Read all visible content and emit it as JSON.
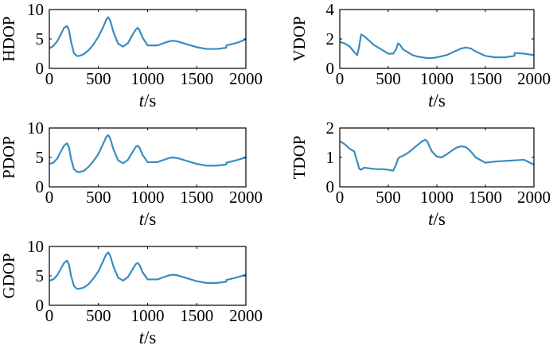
{
  "chart_data": [
    {
      "type": "line",
      "ylabel": "HDOP",
      "xlabel_var": "t",
      "xlabel_unit": "/s",
      "xlim": [
        0,
        2000
      ],
      "ylim": [
        0,
        10
      ],
      "xticks": [
        0,
        500,
        1000,
        1500,
        2000
      ],
      "yticks": [
        0,
        5,
        10
      ],
      "color": "#3a8cc0",
      "x": [
        0,
        40,
        80,
        120,
        150,
        180,
        200,
        220,
        250,
        280,
        300,
        350,
        400,
        450,
        500,
        550,
        580,
        600,
        620,
        650,
        700,
        750,
        800,
        850,
        880,
        900,
        920,
        950,
        1000,
        1100,
        1200,
        1250,
        1300,
        1400,
        1500,
        1600,
        1700,
        1800,
        1801,
        1900,
        2000
      ],
      "y": [
        3.4,
        3.8,
        4.6,
        5.9,
        6.9,
        7.2,
        6.5,
        4.6,
        2.6,
        2.1,
        2.1,
        2.4,
        3.1,
        4.1,
        5.4,
        7.1,
        8.3,
        8.7,
        8.1,
        6.3,
        4.2,
        3.7,
        4.3,
        5.8,
        6.6,
        6.9,
        6.4,
        5.2,
        3.9,
        3.9,
        4.5,
        4.7,
        4.6,
        4.1,
        3.6,
        3.3,
        3.3,
        3.5,
        3.9,
        4.3,
        4.9
      ]
    },
    {
      "type": "line",
      "ylabel": "VDOP",
      "xlabel_var": "t",
      "xlabel_unit": "/s",
      "xlim": [
        0,
        2000
      ],
      "ylim": [
        0,
        4
      ],
      "xticks": [
        0,
        500,
        1000,
        1500,
        2000
      ],
      "yticks": [
        0,
        2,
        4
      ],
      "color": "#3a8cc0",
      "x": [
        0,
        50,
        100,
        150,
        180,
        200,
        220,
        250,
        300,
        350,
        400,
        450,
        500,
        550,
        580,
        600,
        620,
        650,
        700,
        750,
        800,
        850,
        900,
        950,
        1000,
        1100,
        1200,
        1250,
        1300,
        1350,
        1400,
        1500,
        1600,
        1700,
        1800,
        1801,
        1900,
        2000
      ],
      "y": [
        1.8,
        1.7,
        1.5,
        1.1,
        0.9,
        1.5,
        2.3,
        2.2,
        1.9,
        1.6,
        1.4,
        1.2,
        1.0,
        1.0,
        1.3,
        1.7,
        1.6,
        1.3,
        1.1,
        0.9,
        0.8,
        0.75,
        0.7,
        0.7,
        0.75,
        0.9,
        1.2,
        1.35,
        1.42,
        1.35,
        1.15,
        0.85,
        0.75,
        0.75,
        0.85,
        1.05,
        1.0,
        0.9
      ]
    },
    {
      "type": "line",
      "ylabel": "PDOP",
      "xlabel_var": "t",
      "xlabel_unit": "/s",
      "xlim": [
        0,
        2000
      ],
      "ylim": [
        0,
        10
      ],
      "xticks": [
        0,
        500,
        1000,
        1500,
        2000
      ],
      "yticks": [
        0,
        5,
        10
      ],
      "color": "#3a8cc0",
      "x": [
        0,
        40,
        80,
        120,
        150,
        180,
        200,
        220,
        250,
        280,
        300,
        350,
        400,
        450,
        500,
        550,
        580,
        600,
        620,
        650,
        700,
        750,
        800,
        850,
        880,
        900,
        920,
        950,
        1000,
        1100,
        1200,
        1250,
        1300,
        1400,
        1500,
        1600,
        1700,
        1800,
        1801,
        1900,
        2000
      ],
      "y": [
        3.9,
        4.1,
        4.8,
        6.1,
        7.0,
        7.4,
        6.7,
        4.9,
        3.0,
        2.6,
        2.5,
        2.7,
        3.4,
        4.4,
        5.6,
        7.4,
        8.5,
        8.8,
        8.2,
        6.5,
        4.5,
        4.0,
        4.6,
        6.0,
        6.8,
        7.0,
        6.6,
        5.4,
        4.2,
        4.2,
        4.8,
        5.0,
        4.9,
        4.4,
        3.9,
        3.6,
        3.6,
        3.8,
        4.1,
        4.5,
        5.0
      ]
    },
    {
      "type": "line",
      "ylabel": "TDOP",
      "xlabel_var": "t",
      "xlabel_unit": "/s",
      "xlim": [
        0,
        2000
      ],
      "ylim": [
        0,
        2
      ],
      "xticks": [
        0,
        500,
        1000,
        1500,
        2000
      ],
      "yticks": [
        0,
        1,
        2
      ],
      "color": "#3a8cc0",
      "x": [
        0,
        50,
        100,
        150,
        200,
        220,
        250,
        300,
        350,
        400,
        450,
        500,
        550,
        580,
        600,
        620,
        650,
        700,
        750,
        800,
        850,
        880,
        900,
        920,
        950,
        1000,
        1050,
        1100,
        1150,
        1200,
        1250,
        1300,
        1350,
        1400,
        1500,
        1600,
        1700,
        1800,
        1900,
        2000
      ],
      "y": [
        1.55,
        1.45,
        1.3,
        1.2,
        0.62,
        0.58,
        0.65,
        0.63,
        0.61,
        0.6,
        0.6,
        0.58,
        0.55,
        0.75,
        0.95,
        1.02,
        1.05,
        1.15,
        1.28,
        1.42,
        1.55,
        1.6,
        1.55,
        1.4,
        1.2,
        1.03,
        1.0,
        1.1,
        1.22,
        1.33,
        1.38,
        1.35,
        1.2,
        1.0,
        0.82,
        0.86,
        0.88,
        0.9,
        0.92,
        0.75
      ]
    },
    {
      "type": "line",
      "ylabel": "GDOP",
      "xlabel_var": "t",
      "xlabel_unit": "/s",
      "xlim": [
        0,
        2000
      ],
      "ylim": [
        0,
        10
      ],
      "xticks": [
        0,
        500,
        1000,
        1500,
        2000
      ],
      "yticks": [
        0,
        5,
        10
      ],
      "color": "#3a8cc0",
      "x": [
        0,
        40,
        80,
        120,
        150,
        180,
        200,
        220,
        250,
        280,
        300,
        350,
        400,
        450,
        500,
        550,
        580,
        600,
        620,
        650,
        700,
        750,
        800,
        850,
        880,
        900,
        920,
        950,
        1000,
        1100,
        1200,
        1250,
        1300,
        1400,
        1500,
        1600,
        1700,
        1800,
        1801,
        1900,
        2000
      ],
      "y": [
        4.2,
        4.4,
        5.1,
        6.3,
        7.2,
        7.6,
        6.9,
        5.1,
        3.3,
        2.8,
        2.8,
        3.0,
        3.6,
        4.6,
        5.8,
        7.6,
        8.7,
        9.0,
        8.4,
        6.7,
        4.7,
        4.2,
        4.8,
        6.2,
        7.0,
        7.2,
        6.8,
        5.6,
        4.4,
        4.4,
        5.0,
        5.2,
        5.1,
        4.6,
        4.1,
        3.8,
        3.8,
        4.0,
        4.3,
        4.7,
        5.2
      ]
    }
  ]
}
